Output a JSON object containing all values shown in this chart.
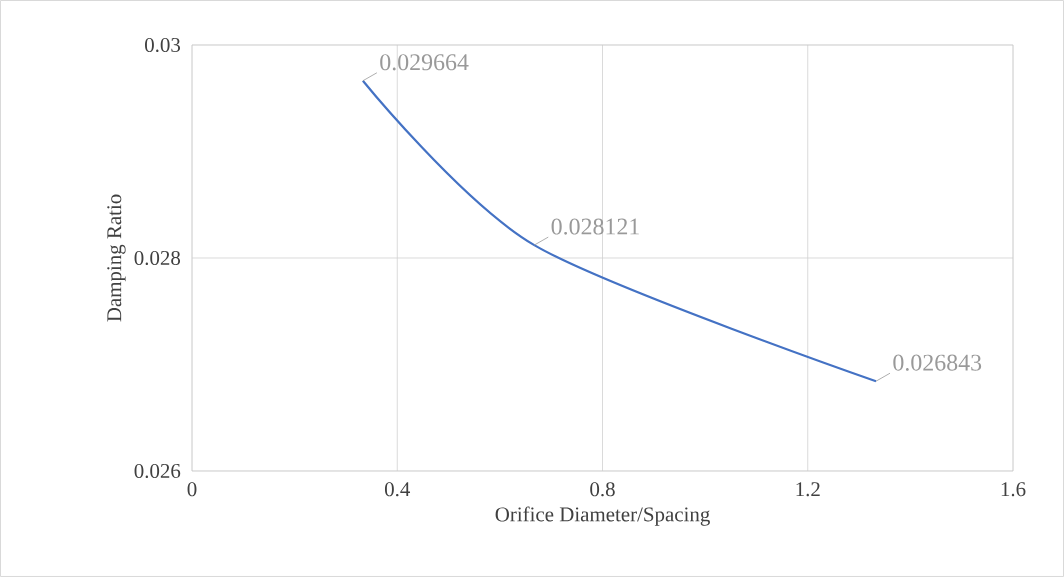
{
  "chart_data": {
    "type": "line",
    "xlabel": "Orifice Diameter/Spacing",
    "ylabel": "Damping Ratio",
    "x": [
      0.333,
      0.667,
      1.333
    ],
    "series": [
      {
        "color": "#4472c4",
        "values": [
          0.029664,
          0.028121,
          0.026843
        ]
      }
    ],
    "xlim": [
      0,
      1.6
    ],
    "xticks": [
      0,
      0.4,
      0.8,
      1.2,
      1.6
    ],
    "ylim": [
      0.026,
      0.03
    ],
    "yticks": [
      0.026,
      0.028,
      0.03
    ],
    "grid": true,
    "data_labels": true,
    "marker": "none"
  }
}
